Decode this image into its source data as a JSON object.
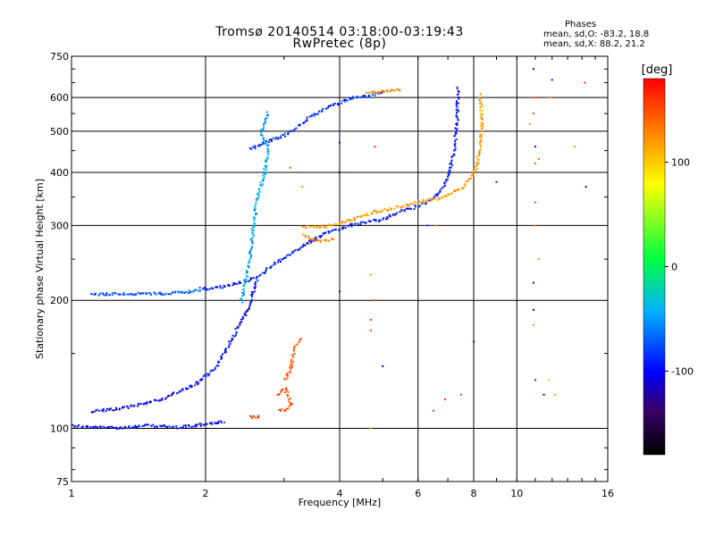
{
  "chart_data": {
    "type": "scatter",
    "title": "Tromsø 20140514 03:18:00-03:19:43",
    "subtitle": "RwPretec (8p)",
    "xlabel": "Frequency [MHz]",
    "ylabel": "Stationary phase Virtual Height [km]",
    "xscale": "log",
    "yscale": "log",
    "xlim": [
      1,
      16
    ],
    "ylim": [
      75,
      750
    ],
    "xticks": [
      "1",
      "2",
      "4",
      "6",
      "8",
      "10",
      "16"
    ],
    "xtick_values": [
      1,
      2,
      4,
      6,
      8,
      10,
      16
    ],
    "yticks": [
      "75",
      "100",
      "200",
      "300",
      "400",
      "500",
      "600",
      "750"
    ],
    "ytick_values": [
      75,
      100,
      200,
      300,
      400,
      500,
      600,
      750
    ],
    "grid": true,
    "colorbar": {
      "label": "[deg]",
      "range": [
        -180,
        180
      ],
      "ticks": [
        "100",
        "0",
        "-100"
      ],
      "tick_values": [
        100,
        0,
        -100
      ]
    },
    "stats": {
      "heading": "Phases",
      "line_o": "mean, sd,O: -83.2, 18.8",
      "line_x": "mean, sd,X: 88.2, 21.2"
    },
    "traces": [
      {
        "mode": "O",
        "phase": -100,
        "points": [
          [
            1.0,
            102
          ],
          [
            1.1,
            101
          ],
          [
            1.3,
            101
          ],
          [
            1.5,
            102
          ],
          [
            1.7,
            101
          ],
          [
            1.9,
            102
          ],
          [
            2.0,
            103
          ],
          [
            2.2,
            104
          ]
        ]
      },
      {
        "mode": "O",
        "phase": -100,
        "points": [
          [
            1.1,
            110
          ],
          [
            1.3,
            112
          ],
          [
            1.6,
            118
          ],
          [
            1.9,
            128
          ],
          [
            2.1,
            140
          ],
          [
            2.3,
            165
          ],
          [
            2.5,
            195
          ],
          [
            2.6,
            225
          ]
        ]
      },
      {
        "mode": "O",
        "phase": -95,
        "points": [
          [
            2.0,
            213
          ],
          [
            2.3,
            219
          ],
          [
            2.6,
            228
          ],
          [
            2.9,
            248
          ],
          [
            3.3,
            270
          ],
          [
            3.7,
            290
          ],
          [
            4.3,
            303
          ],
          [
            5.0,
            312
          ],
          [
            5.5,
            326
          ],
          [
            6.0,
            335
          ],
          [
            6.5,
            350
          ],
          [
            6.8,
            370
          ],
          [
            7.0,
            400
          ],
          [
            7.2,
            450
          ],
          [
            7.3,
            520
          ],
          [
            7.35,
            640
          ]
        ]
      },
      {
        "mode": "O",
        "phase": -90,
        "points": [
          [
            2.5,
            455
          ],
          [
            2.8,
            480
          ],
          [
            3.0,
            490
          ],
          [
            3.4,
            540
          ],
          [
            3.8,
            575
          ],
          [
            4.2,
            600
          ],
          [
            4.7,
            610
          ],
          [
            5.0,
            620
          ]
        ]
      },
      {
        "mode": "O",
        "phase": -80,
        "points": [
          [
            1.1,
            208
          ],
          [
            1.5,
            208
          ],
          [
            1.8,
            210
          ],
          [
            2.0,
            215
          ]
        ]
      },
      {
        "mode": "O",
        "phase": -60,
        "points": [
          [
            2.4,
            200
          ],
          [
            2.5,
            250
          ],
          [
            2.55,
            300
          ],
          [
            2.6,
            350
          ],
          [
            2.7,
            400
          ],
          [
            2.75,
            460
          ],
          [
            2.65,
            500
          ],
          [
            2.75,
            560
          ]
        ]
      },
      {
        "mode": "X",
        "phase": 120,
        "points": [
          [
            3.3,
            300
          ],
          [
            3.7,
            300
          ],
          [
            4.2,
            310
          ],
          [
            4.8,
            325
          ],
          [
            5.5,
            335
          ],
          [
            6.2,
            345
          ],
          [
            6.8,
            350
          ],
          [
            7.5,
            370
          ],
          [
            8.0,
            400
          ],
          [
            8.2,
            450
          ],
          [
            8.3,
            500
          ],
          [
            8.3,
            560
          ],
          [
            8.2,
            620
          ]
        ]
      },
      {
        "mode": "X",
        "phase": 125,
        "points": [
          [
            3.3,
            285
          ],
          [
            3.6,
            277
          ],
          [
            3.9,
            280
          ]
        ]
      },
      {
        "mode": "X",
        "phase": 125,
        "points": [
          [
            4.6,
            615
          ],
          [
            5.0,
            625
          ],
          [
            5.5,
            630
          ]
        ]
      },
      {
        "mode": "X",
        "phase": 155,
        "points": [
          [
            2.5,
            107
          ],
          [
            2.65,
            107
          ]
        ]
      },
      {
        "mode": "X",
        "phase": 150,
        "points": [
          [
            2.9,
            120
          ],
          [
            3.0,
            125
          ],
          [
            3.1,
            115
          ],
          [
            3.0,
            110
          ],
          [
            2.9,
            112
          ]
        ]
      },
      {
        "mode": "X",
        "phase": 145,
        "points": [
          [
            3.0,
            130
          ],
          [
            3.1,
            140
          ],
          [
            3.15,
            155
          ],
          [
            3.25,
            165
          ]
        ]
      }
    ],
    "sparse_points": [
      [
        2.6,
        500,
        150
      ],
      [
        4.0,
        470,
        -120
      ],
      [
        4.8,
        460,
        150
      ],
      [
        3.1,
        410,
        150
      ],
      [
        4.0,
        400,
        -120
      ],
      [
        9.0,
        380,
        -120
      ],
      [
        3.3,
        370,
        125
      ],
      [
        4.8,
        460,
        160
      ],
      [
        4.0,
        210,
        -100
      ],
      [
        4.7,
        230,
        125
      ],
      [
        4.8,
        200,
        150
      ],
      [
        4.7,
        180,
        160
      ],
      [
        4.7,
        170,
        150
      ],
      [
        5.0,
        140,
        -110
      ],
      [
        4.7,
        100,
        125
      ],
      [
        6.5,
        110,
        160
      ],
      [
        6.9,
        117,
        160
      ],
      [
        7.5,
        120,
        150
      ],
      [
        8.0,
        160,
        -100
      ],
      [
        8.2,
        420,
        125
      ],
      [
        10.9,
        700,
        -100
      ],
      [
        10.9,
        600,
        140
      ],
      [
        11.0,
        460,
        -100
      ],
      [
        11.2,
        430,
        140
      ],
      [
        11.0,
        420,
        140
      ],
      [
        11.0,
        300,
        135
      ],
      [
        11.2,
        250,
        130
      ],
      [
        10.9,
        190,
        -100
      ],
      [
        10.9,
        175,
        125
      ],
      [
        11.8,
        130,
        110
      ],
      [
        12.2,
        120,
        125
      ],
      [
        13.5,
        460,
        125
      ],
      [
        14.2,
        650,
        160
      ],
      [
        14.3,
        370,
        -110
      ],
      [
        11.9,
        600,
        125
      ],
      [
        12.0,
        660,
        -100
      ],
      [
        10.7,
        520,
        125
      ],
      [
        10.9,
        550,
        150
      ],
      [
        11.0,
        340,
        150
      ],
      [
        10.9,
        220,
        -100
      ],
      [
        11.5,
        120,
        -100
      ],
      [
        11.2,
        600,
        150
      ],
      [
        11.0,
        130,
        -90
      ],
      [
        6.6,
        300,
        125
      ],
      [
        6.3,
        300,
        -90
      ]
    ]
  }
}
